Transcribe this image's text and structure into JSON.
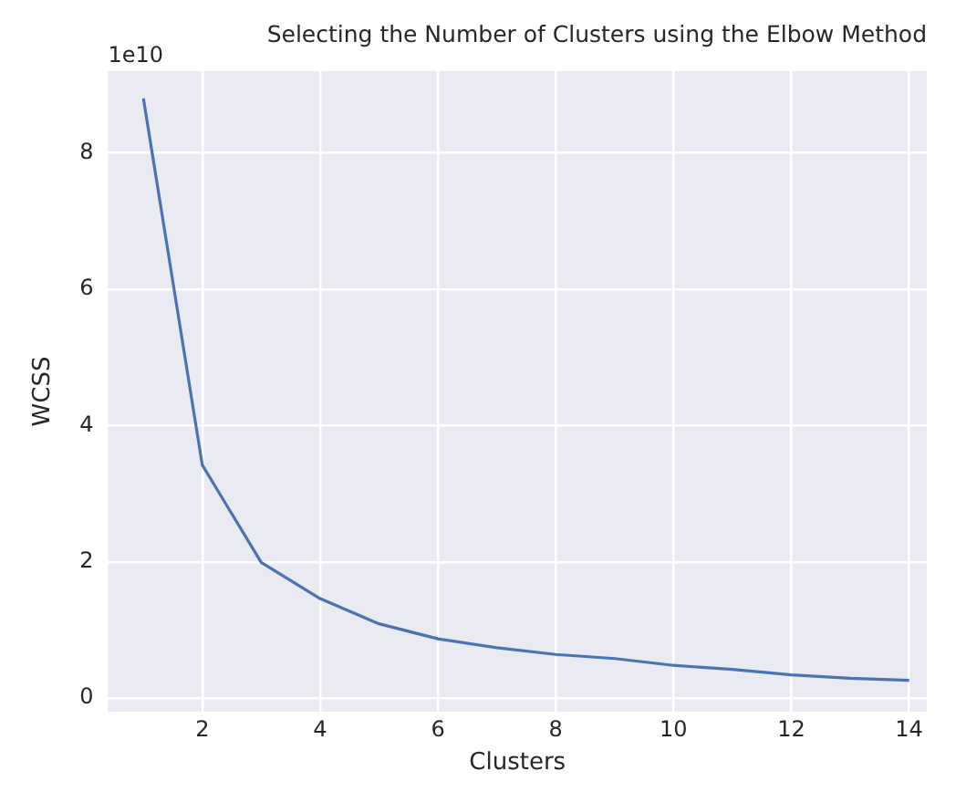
{
  "chart_data": {
    "type": "line",
    "title": "Selecting the Number of Clusters using the Elbow Method",
    "xlabel": "Clusters",
    "ylabel": "WCSS",
    "x": [
      1,
      2,
      3,
      4,
      5,
      6,
      7,
      8,
      9,
      10,
      11,
      12,
      13,
      14
    ],
    "series": [
      {
        "color": "#4c72b0",
        "values": [
          8.8,
          3.42,
          1.99,
          1.46,
          1.09,
          0.87,
          0.74,
          0.64,
          0.58,
          0.48,
          0.42,
          0.34,
          0.29,
          0.26
        ]
      }
    ],
    "xlim": [
      0.4,
      14.3
    ],
    "xticks": [
      2,
      4,
      6,
      8,
      10,
      12,
      14
    ],
    "ylim": [
      -0.2,
      9.2
    ],
    "yticks": [
      0,
      2,
      4,
      6,
      8
    ],
    "annotations": [
      "1e10"
    ],
    "grid": true,
    "legend": false,
    "marker": "none",
    "line_style": "solid"
  }
}
